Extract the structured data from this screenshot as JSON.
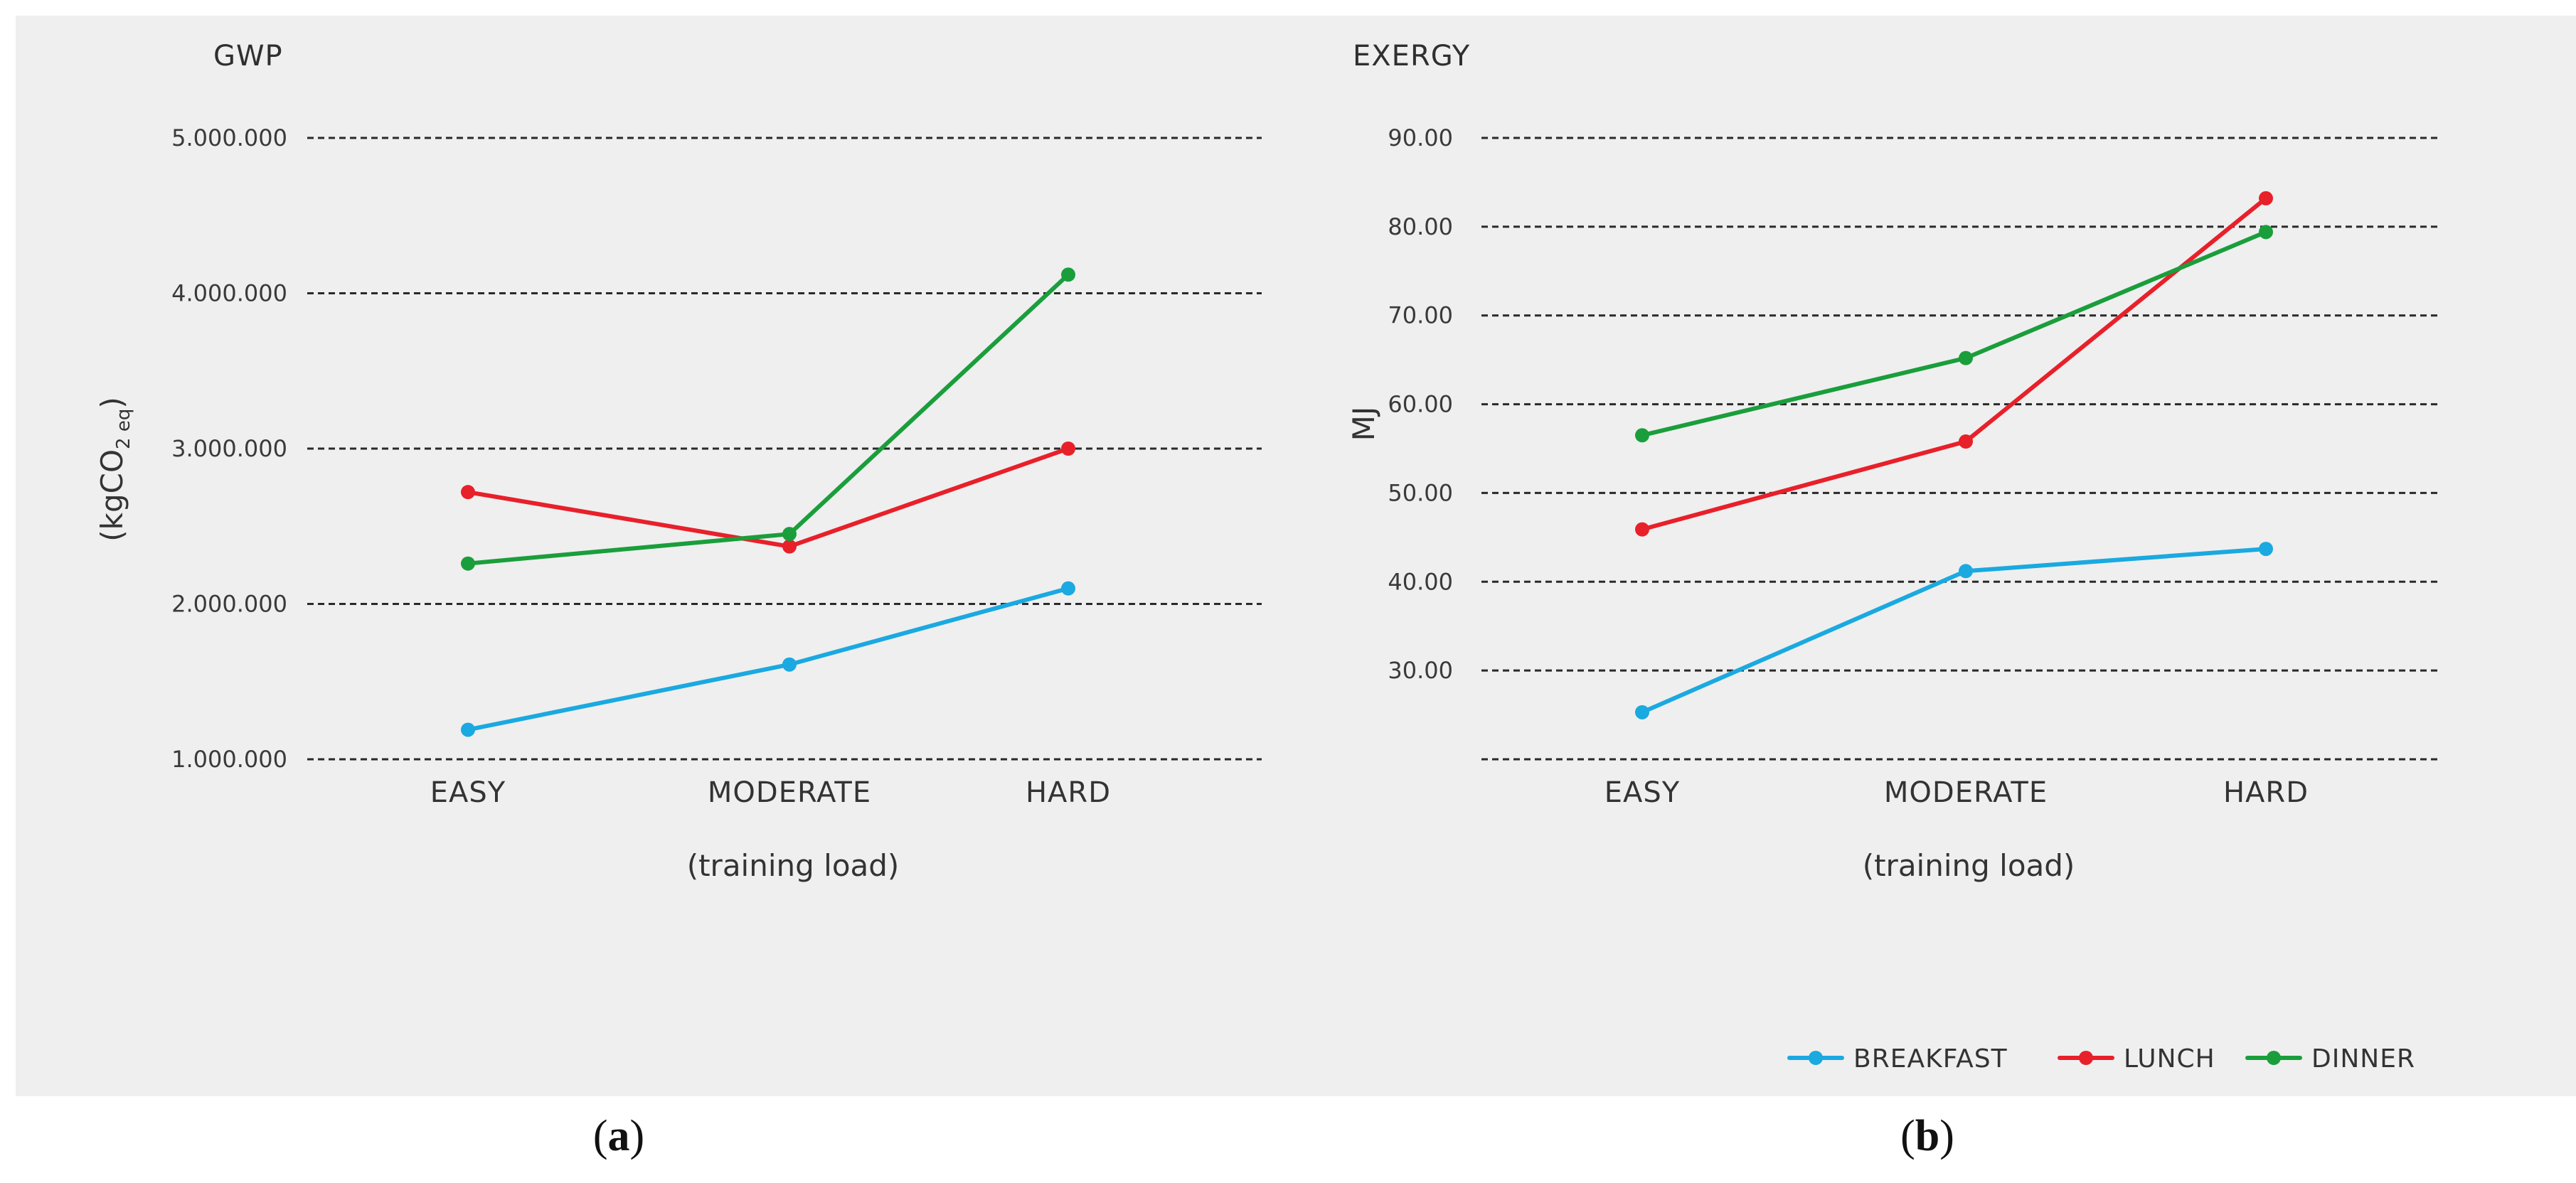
{
  "chart_data": [
    {
      "type": "line",
      "panel_label": "a",
      "title": "GWP",
      "ylabel": "(kgCO",
      "ylabel_sub": "2 eq",
      "ylabel_close": ")",
      "xlabel": "(training load)",
      "categories": [
        "EASY",
        "MODERATE",
        "HARD"
      ],
      "yticks": [
        1000000,
        2000000,
        3000000,
        4000000,
        5000000
      ],
      "ytick_labels": [
        "1.000.000",
        "2.000.000",
        "3.000.000",
        "4.000.000",
        "5.000.000"
      ],
      "ylim": [
        1000000,
        5000000
      ],
      "grid": true,
      "series": [
        {
          "name": "BREAKFAST",
          "color": "#1aa9e0",
          "values": [
            1190000,
            1610000,
            2100000
          ]
        },
        {
          "name": "LUNCH",
          "color": "#e8202a",
          "values": [
            2720000,
            2370000,
            3000000
          ]
        },
        {
          "name": "DINNER",
          "color": "#1a9e3c",
          "values": [
            2260000,
            2450000,
            4120000
          ]
        }
      ]
    },
    {
      "type": "line",
      "panel_label": "b",
      "title": "EXERGY",
      "ylabel": "MJ",
      "xlabel": "(training load)",
      "categories": [
        "EASY",
        "MODERATE",
        "HARD"
      ],
      "yticks": [
        20,
        30,
        40,
        50,
        60,
        70,
        80,
        90
      ],
      "ytick_labels": [
        "",
        "30.00",
        "40.00",
        "50.00",
        "60.00",
        "70.00",
        "80.00",
        "90.00"
      ],
      "ylim": [
        20,
        90
      ],
      "grid": true,
      "series": [
        {
          "name": "BREAKFAST",
          "color": "#1aa9e0",
          "values": [
            25.3,
            41.2,
            43.7
          ]
        },
        {
          "name": "LUNCH",
          "color": "#e8202a",
          "values": [
            45.9,
            55.8,
            83.2
          ]
        },
        {
          "name": "DINNER",
          "color": "#1a9e3c",
          "values": [
            56.5,
            65.2,
            79.4
          ]
        }
      ]
    }
  ],
  "legend": [
    {
      "name": "BREAKFAST",
      "color": "#1aa9e0"
    },
    {
      "name": "LUNCH",
      "color": "#e8202a"
    },
    {
      "name": "DINNER",
      "color": "#1a9e3c"
    }
  ],
  "captions": {
    "a": "a",
    "b": "b"
  }
}
